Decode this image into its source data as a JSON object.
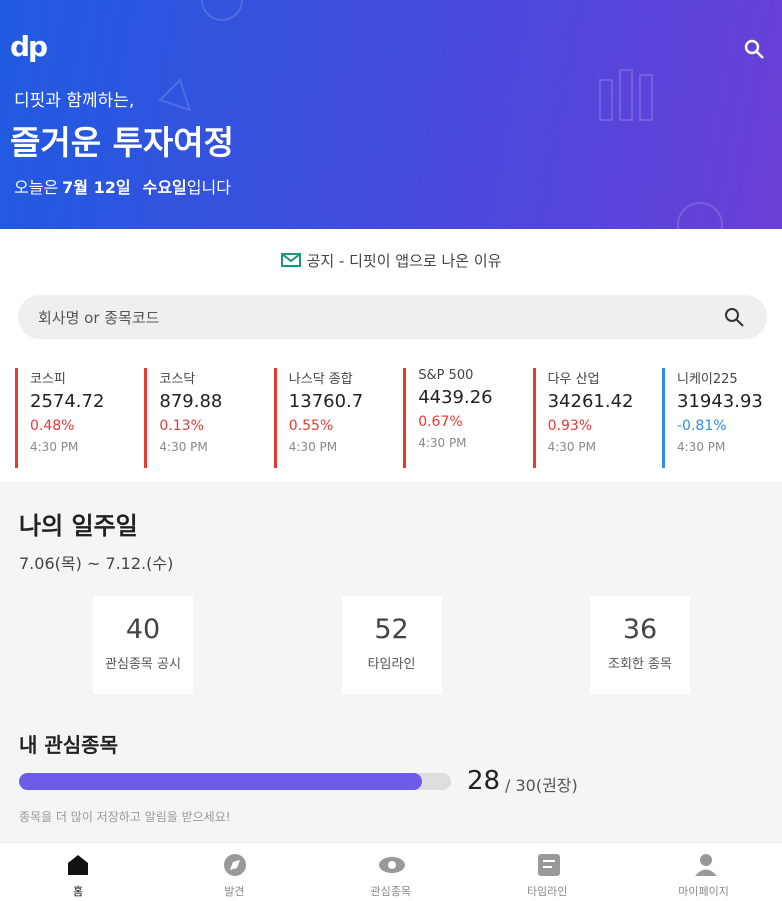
{
  "header": {
    "logo": "dp",
    "line1": "디핏과 함께하는,",
    "title": "즐거운 투자여정",
    "date_parts": [
      "오늘은",
      "7월 12일",
      "수요일",
      "입니다"
    ]
  },
  "notice": "공지 - 디핏이 앱으로 나온 이유",
  "search": {
    "placeholder": "회사명 or 종목코드"
  },
  "indices": [
    {
      "name": "코스피",
      "value": "2574.72",
      "change": "0.48%",
      "time": "4:30 PM",
      "color": "#e53935"
    },
    {
      "name": "코스닥",
      "value": "879.88",
      "change": "0.13%",
      "time": "4:30 PM",
      "color": "#e53935"
    },
    {
      "name": "나스닥 종합",
      "value": "13760.7",
      "change": "0.55%",
      "time": "4:30 PM",
      "color": "#e53935"
    },
    {
      "name": "S&P 500",
      "value": "4439.26",
      "change": "0.67%",
      "time": "4:30 PM",
      "color": "#e53935"
    },
    {
      "name": "다우 산업",
      "value": "34261.42",
      "change": "0.93%",
      "time": "4:30 PM",
      "color": "#e53935"
    },
    {
      "name": "니케이225",
      "value": "31943.93",
      "change": "-0.81%",
      "time": "4:30 PM",
      "color": "#2f8fe0"
    }
  ],
  "weekly": {
    "title": "나의 일주일",
    "range": "7.06(목) ~ 7.12.(수)",
    "stats": [
      {
        "value": "40",
        "label": "관심종목 공시"
      },
      {
        "value": "52",
        "label": "타임라인"
      },
      {
        "value": "36",
        "label": "조회한 종목"
      }
    ]
  },
  "watchlist": {
    "title": "내 관심종목",
    "value": 28,
    "max": 30,
    "max_label": "/ 30(권장)",
    "hint": "종목을 더 많이 저장하고 알림을 받으세요!"
  },
  "nav": [
    "홈",
    "발견",
    "관심종목",
    "타임라인",
    "마이페이지"
  ]
}
